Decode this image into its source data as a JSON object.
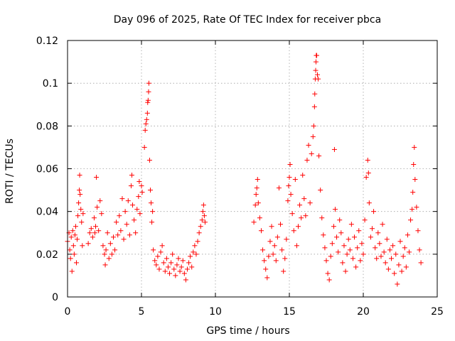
{
  "chart_data": {
    "type": "scatter",
    "title": "Day 096 of 2025, Rate Of TEC Index for receiver pbca",
    "xlabel": "GPS time / hours",
    "ylabel": "ROTI / TECUs",
    "xlim": [
      0,
      25
    ],
    "ylim": [
      0,
      0.12
    ],
    "xticks": [
      0,
      5,
      10,
      15,
      20,
      25
    ],
    "xtick_labels": [
      "0",
      "5",
      "10",
      "15",
      "20",
      "25"
    ],
    "yticks": [
      0,
      0.02,
      0.04,
      0.06,
      0.08,
      0.1,
      0.12
    ],
    "ytick_labels": [
      "0",
      "0.02",
      "0.04",
      "0.06",
      "0.08",
      "0.1",
      "0.12"
    ],
    "grid": true,
    "marker": "+",
    "series": [
      {
        "name": "ROTI",
        "color": "#ff0000",
        "points": [
          [
            0.0,
            0.026
          ],
          [
            0.1,
            0.03
          ],
          [
            0.15,
            0.022
          ],
          [
            0.2,
            0.018
          ],
          [
            0.25,
            0.028
          ],
          [
            0.3,
            0.012
          ],
          [
            0.35,
            0.031
          ],
          [
            0.4,
            0.024
          ],
          [
            0.45,
            0.02
          ],
          [
            0.5,
            0.029
          ],
          [
            0.55,
            0.033
          ],
          [
            0.6,
            0.016
          ],
          [
            0.65,
            0.027
          ],
          [
            0.7,
            0.038
          ],
          [
            0.75,
            0.044
          ],
          [
            0.8,
            0.05
          ],
          [
            0.82,
            0.057
          ],
          [
            0.85,
            0.048
          ],
          [
            0.9,
            0.041
          ],
          [
            0.95,
            0.035
          ],
          [
            1.0,
            0.024
          ],
          [
            1.05,
            0.039
          ],
          [
            1.4,
            0.025
          ],
          [
            1.5,
            0.03
          ],
          [
            1.6,
            0.032
          ],
          [
            1.7,
            0.028
          ],
          [
            1.8,
            0.037
          ],
          [
            1.85,
            0.03
          ],
          [
            1.9,
            0.033
          ],
          [
            1.95,
            0.056
          ],
          [
            2.0,
            0.042
          ],
          [
            2.1,
            0.031
          ],
          [
            2.2,
            0.045
          ],
          [
            2.3,
            0.039
          ],
          [
            2.4,
            0.024
          ],
          [
            2.5,
            0.02
          ],
          [
            2.55,
            0.015
          ],
          [
            2.6,
            0.022
          ],
          [
            2.7,
            0.03
          ],
          [
            2.8,
            0.018
          ],
          [
            2.9,
            0.025
          ],
          [
            3.0,
            0.02
          ],
          [
            3.1,
            0.028
          ],
          [
            3.2,
            0.022
          ],
          [
            3.3,
            0.035
          ],
          [
            3.4,
            0.029
          ],
          [
            3.5,
            0.038
          ],
          [
            3.6,
            0.031
          ],
          [
            3.7,
            0.046
          ],
          [
            3.8,
            0.027
          ],
          [
            3.9,
            0.04
          ],
          [
            4.0,
            0.034
          ],
          [
            4.1,
            0.045
          ],
          [
            4.2,
            0.029
          ],
          [
            4.3,
            0.052
          ],
          [
            4.35,
            0.057
          ],
          [
            4.4,
            0.043
          ],
          [
            4.5,
            0.036
          ],
          [
            4.6,
            0.03
          ],
          [
            4.7,
            0.041
          ],
          [
            4.8,
            0.047
          ],
          [
            4.85,
            0.054
          ],
          [
            4.9,
            0.039
          ],
          [
            5.0,
            0.052
          ],
          [
            5.05,
            0.049
          ],
          [
            5.2,
            0.07
          ],
          [
            5.25,
            0.078
          ],
          [
            5.3,
            0.081
          ],
          [
            5.35,
            0.083
          ],
          [
            5.4,
            0.086
          ],
          [
            5.42,
            0.091
          ],
          [
            5.45,
            0.092
          ],
          [
            5.48,
            0.096
          ],
          [
            5.5,
            0.1
          ],
          [
            5.55,
            0.064
          ],
          [
            5.6,
            0.05
          ],
          [
            5.65,
            0.044
          ],
          [
            5.7,
            0.035
          ],
          [
            5.75,
            0.04
          ],
          [
            5.8,
            0.022
          ],
          [
            5.9,
            0.017
          ],
          [
            6.0,
            0.015
          ],
          [
            6.1,
            0.019
          ],
          [
            6.2,
            0.013
          ],
          [
            6.3,
            0.021
          ],
          [
            6.4,
            0.024
          ],
          [
            6.5,
            0.016
          ],
          [
            6.6,
            0.012
          ],
          [
            6.7,
            0.018
          ],
          [
            6.8,
            0.014
          ],
          [
            6.9,
            0.011
          ],
          [
            7.0,
            0.016
          ],
          [
            7.1,
            0.02
          ],
          [
            7.2,
            0.013
          ],
          [
            7.3,
            0.01
          ],
          [
            7.4,
            0.015
          ],
          [
            7.5,
            0.018
          ],
          [
            7.6,
            0.012
          ],
          [
            7.7,
            0.014
          ],
          [
            7.8,
            0.017
          ],
          [
            7.9,
            0.011
          ],
          [
            8.0,
            0.008
          ],
          [
            8.1,
            0.013
          ],
          [
            8.2,
            0.016
          ],
          [
            8.3,
            0.019
          ],
          [
            8.4,
            0.014
          ],
          [
            8.5,
            0.021
          ],
          [
            8.6,
            0.024
          ],
          [
            8.7,
            0.02
          ],
          [
            8.8,
            0.026
          ],
          [
            8.9,
            0.03
          ],
          [
            9.0,
            0.033
          ],
          [
            9.1,
            0.036
          ],
          [
            9.15,
            0.04
          ],
          [
            9.2,
            0.043
          ],
          [
            9.25,
            0.038
          ],
          [
            9.3,
            0.035
          ],
          [
            12.6,
            0.035
          ],
          [
            12.7,
            0.043
          ],
          [
            12.75,
            0.048
          ],
          [
            12.8,
            0.051
          ],
          [
            12.85,
            0.055
          ],
          [
            12.9,
            0.044
          ],
          [
            13.0,
            0.037
          ],
          [
            13.1,
            0.031
          ],
          [
            13.2,
            0.022
          ],
          [
            13.3,
            0.017
          ],
          [
            13.4,
            0.013
          ],
          [
            13.5,
            0.009
          ],
          [
            13.6,
            0.019
          ],
          [
            13.7,
            0.026
          ],
          [
            13.8,
            0.033
          ],
          [
            13.9,
            0.02
          ],
          [
            14.0,
            0.024
          ],
          [
            14.1,
            0.017
          ],
          [
            14.2,
            0.028
          ],
          [
            14.3,
            0.051
          ],
          [
            14.4,
            0.034
          ],
          [
            14.5,
            0.022
          ],
          [
            14.6,
            0.012
          ],
          [
            14.7,
            0.018
          ],
          [
            14.8,
            0.027
          ],
          [
            14.9,
            0.045
          ],
          [
            14.95,
            0.052
          ],
          [
            15.0,
            0.056
          ],
          [
            15.05,
            0.062
          ],
          [
            15.1,
            0.048
          ],
          [
            15.2,
            0.039
          ],
          [
            15.3,
            0.031
          ],
          [
            15.4,
            0.055
          ],
          [
            15.5,
            0.024
          ],
          [
            15.6,
            0.033
          ],
          [
            15.7,
            0.043
          ],
          [
            15.8,
            0.037
          ],
          [
            15.9,
            0.057
          ],
          [
            16.0,
            0.046
          ],
          [
            16.1,
            0.038
          ],
          [
            16.2,
            0.064
          ],
          [
            16.3,
            0.071
          ],
          [
            16.4,
            0.044
          ],
          [
            16.5,
            0.067
          ],
          [
            16.6,
            0.075
          ],
          [
            16.65,
            0.08
          ],
          [
            16.7,
            0.089
          ],
          [
            16.72,
            0.095
          ],
          [
            16.75,
            0.102
          ],
          [
            16.78,
            0.106
          ],
          [
            16.8,
            0.11
          ],
          [
            16.82,
            0.113
          ],
          [
            16.85,
            0.113
          ],
          [
            16.9,
            0.104
          ],
          [
            16.95,
            0.102
          ],
          [
            17.0,
            0.066
          ],
          [
            17.1,
            0.05
          ],
          [
            17.2,
            0.037
          ],
          [
            17.3,
            0.029
          ],
          [
            17.4,
            0.023
          ],
          [
            17.5,
            0.017
          ],
          [
            17.6,
            0.011
          ],
          [
            17.7,
            0.008
          ],
          [
            17.8,
            0.019
          ],
          [
            17.9,
            0.025
          ],
          [
            18.0,
            0.033
          ],
          [
            18.05,
            0.069
          ],
          [
            18.1,
            0.041
          ],
          [
            18.2,
            0.028
          ],
          [
            18.3,
            0.021
          ],
          [
            18.4,
            0.036
          ],
          [
            18.5,
            0.03
          ],
          [
            18.6,
            0.016
          ],
          [
            18.7,
            0.024
          ],
          [
            18.8,
            0.012
          ],
          [
            18.9,
            0.02
          ],
          [
            19.0,
            0.027
          ],
          [
            19.1,
            0.022
          ],
          [
            19.2,
            0.034
          ],
          [
            19.3,
            0.018
          ],
          [
            19.4,
            0.028
          ],
          [
            19.5,
            0.014
          ],
          [
            19.6,
            0.023
          ],
          [
            19.7,
            0.031
          ],
          [
            19.8,
            0.017
          ],
          [
            19.9,
            0.025
          ],
          [
            20.0,
            0.02
          ],
          [
            20.1,
            0.036
          ],
          [
            20.2,
            0.056
          ],
          [
            20.3,
            0.064
          ],
          [
            20.35,
            0.058
          ],
          [
            20.4,
            0.044
          ],
          [
            20.5,
            0.028
          ],
          [
            20.6,
            0.032
          ],
          [
            20.7,
            0.04
          ],
          [
            20.8,
            0.023
          ],
          [
            20.9,
            0.018
          ],
          [
            21.0,
            0.03
          ],
          [
            21.1,
            0.025
          ],
          [
            21.2,
            0.019
          ],
          [
            21.3,
            0.034
          ],
          [
            21.4,
            0.021
          ],
          [
            21.5,
            0.016
          ],
          [
            21.6,
            0.027
          ],
          [
            21.7,
            0.013
          ],
          [
            21.8,
            0.022
          ],
          [
            21.9,
            0.018
          ],
          [
            22.0,
            0.024
          ],
          [
            22.1,
            0.011
          ],
          [
            22.2,
            0.02
          ],
          [
            22.3,
            0.006
          ],
          [
            22.4,
            0.015
          ],
          [
            22.5,
            0.026
          ],
          [
            22.6,
            0.012
          ],
          [
            22.7,
            0.019
          ],
          [
            22.8,
            0.023
          ],
          [
            22.9,
            0.014
          ],
          [
            23.0,
            0.029
          ],
          [
            23.1,
            0.021
          ],
          [
            23.2,
            0.036
          ],
          [
            23.3,
            0.041
          ],
          [
            23.35,
            0.049
          ],
          [
            23.4,
            0.062
          ],
          [
            23.45,
            0.07
          ],
          [
            23.5,
            0.055
          ],
          [
            23.6,
            0.042
          ],
          [
            23.7,
            0.031
          ],
          [
            23.8,
            0.022
          ],
          [
            23.9,
            0.016
          ]
        ]
      }
    ]
  }
}
